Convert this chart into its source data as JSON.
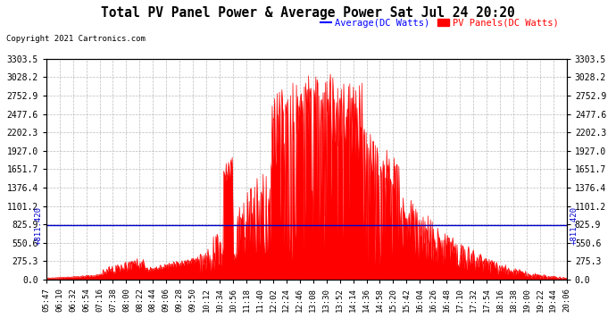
{
  "title": "Total PV Panel Power & Average Power Sat Jul 24 20:20",
  "copyright": "Copyright 2021 Cartronics.com",
  "legend_avg": "Average(DC Watts)",
  "legend_pv": "PV Panels(DC Watts)",
  "ymin": 0.0,
  "ymax": 3303.5,
  "yticks": [
    0.0,
    275.3,
    550.6,
    825.9,
    1101.2,
    1376.4,
    1651.7,
    1927.0,
    2202.3,
    2477.6,
    2752.9,
    3028.2,
    3303.5
  ],
  "avg_line_y": 811.42,
  "avg_line_label": "811.420",
  "bg_color": "#ffffff",
  "plot_bg_color": "#ffffff",
  "pv_fill_color": "#ff0000",
  "avg_line_color": "#0000cc",
  "title_color": "#000000",
  "tick_color": "#000000",
  "grid_color": "#aaaaaa",
  "copyright_color": "#000000",
  "avg_legend_color": "#0000ff",
  "pv_legend_color": "#ff0000",
  "left_label_color": "#0000cc",
  "xtick_labels": [
    "05:47",
    "06:10",
    "06:32",
    "06:54",
    "07:16",
    "07:38",
    "08:00",
    "08:22",
    "08:44",
    "09:06",
    "09:28",
    "09:50",
    "10:12",
    "10:34",
    "10:56",
    "11:18",
    "11:40",
    "12:02",
    "12:24",
    "12:46",
    "13:08",
    "13:30",
    "13:52",
    "14:14",
    "14:36",
    "14:58",
    "15:20",
    "15:42",
    "16:04",
    "16:26",
    "16:48",
    "17:10",
    "17:32",
    "17:54",
    "18:16",
    "18:38",
    "19:00",
    "19:22",
    "19:44",
    "20:06"
  ]
}
